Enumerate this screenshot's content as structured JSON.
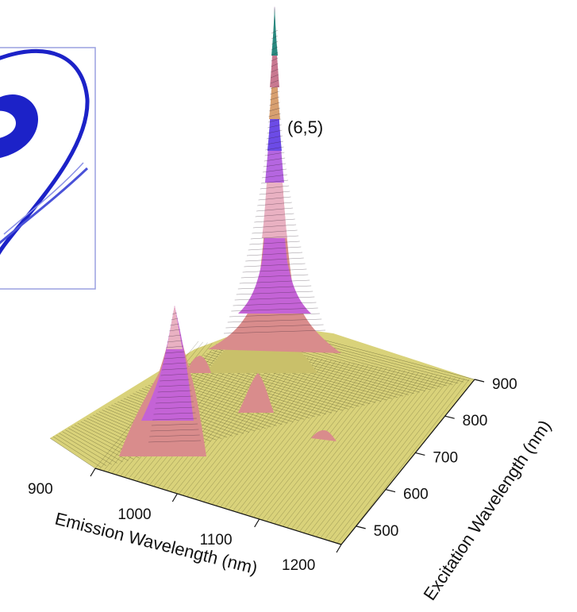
{
  "chart_data": {
    "type": "surface-3d",
    "x_axis": {
      "title": "Emission Wavelength (nm)",
      "ticks": [
        900,
        1000,
        1100,
        1200
      ],
      "range": [
        900,
        1200
      ]
    },
    "y_axis": {
      "title": "Excitation Wavelength (nm)",
      "ticks": [
        500,
        600,
        700,
        800,
        900
      ],
      "range": [
        450,
        900
      ]
    },
    "peaks": [
      {
        "label": "(6,5)",
        "emission": 985,
        "excitation": 570,
        "height": 1.0
      },
      {
        "label": "",
        "emission": 950,
        "excitation": 650,
        "height": 0.36
      },
      {
        "label": "",
        "emission": 1030,
        "excitation": 700,
        "height": 0.14
      },
      {
        "label": "",
        "emission": 1125,
        "excitation": 580,
        "height": 0.08
      },
      {
        "label": "",
        "emission": 1040,
        "excitation": 820,
        "height": 0.06
      }
    ],
    "colors": {
      "base": "#d9d27a",
      "salmon": "#d98c8c",
      "magenta": "#c463d6",
      "pink": "#e9b1c2",
      "inset_frame": "#9aa0e0",
      "inset_curve": "#1c22c8"
    }
  }
}
